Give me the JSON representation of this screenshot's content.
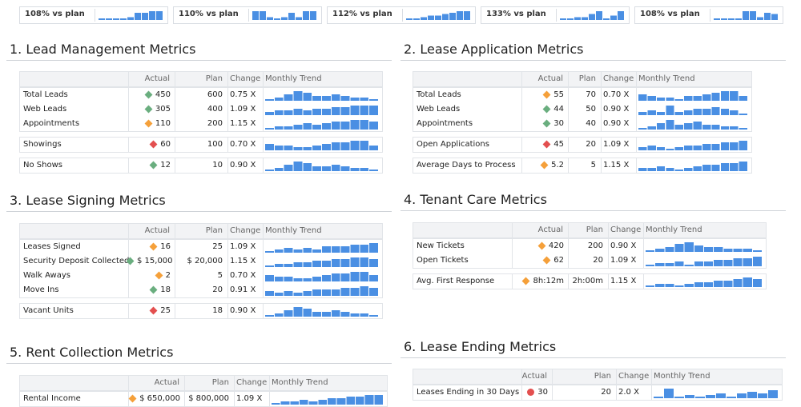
{
  "colors": {
    "green": "#6aae7f",
    "orange": "#f5a03a",
    "red": "#e34f4f",
    "bar": "#4a8fe3"
  },
  "kpis": [
    {
      "label": "108% vs plan",
      "trend": [
        1,
        1,
        1,
        1,
        2,
        5,
        5,
        6,
        6
      ]
    },
    {
      "label": "110% vs plan",
      "trend": [
        6,
        6,
        2,
        1,
        2,
        5,
        2,
        6,
        6
      ]
    },
    {
      "label": "112% vs plan",
      "trend": [
        1,
        1,
        2,
        3,
        3,
        4,
        5,
        6,
        6
      ]
    },
    {
      "label": "133% vs plan",
      "trend": [
        1,
        1,
        2,
        2,
        4,
        6,
        1,
        3,
        6
      ]
    },
    {
      "label": "108% vs plan",
      "trend": [
        1,
        1,
        1,
        1,
        6,
        6,
        2,
        5,
        4
      ]
    }
  ],
  "headers": {
    "actual": "Actual",
    "plan": "Plan",
    "change": "Change",
    "trend": "Monthly Trend"
  },
  "sections": [
    {
      "title": "1. Lead Management Metrics",
      "groups": [
        [
          {
            "name": "Total Leads",
            "status": "green",
            "actual": "450",
            "plan": "600",
            "change": "0.75 X",
            "trend": [
              1,
              2,
              4,
              6,
              5,
              3,
              3,
              4,
              3,
              2,
              2,
              1
            ]
          },
          {
            "name": "Web Leads",
            "status": "green",
            "actual": "305",
            "plan": "400",
            "change": "1.09 X",
            "trend": [
              2,
              3,
              3,
              4,
              3,
              4,
              4,
              5,
              5,
              6,
              6,
              6
            ]
          },
          {
            "name": "Appointments",
            "status": "orange",
            "actual": "110",
            "plan": "200",
            "change": "1.15 X",
            "trend": [
              1,
              2,
              2,
              3,
              4,
              3,
              4,
              5,
              5,
              6,
              6,
              5
            ]
          }
        ],
        [
          {
            "name": "Showings",
            "status": "red",
            "actual": "60",
            "plan": "100",
            "change": "0.70 X",
            "trend": [
              4,
              3,
              3,
              2,
              2,
              3,
              4,
              5,
              5,
              6,
              6,
              3
            ]
          }
        ],
        [
          {
            "name": "No Shows",
            "status": "green",
            "actual": "12",
            "plan": "10",
            "change": "0.90 X",
            "trend": [
              1,
              2,
              4,
              6,
              5,
              3,
              3,
              4,
              3,
              2,
              2,
              1
            ]
          }
        ]
      ]
    },
    {
      "title": "2. Lease Application Metrics",
      "groups": [
        [
          {
            "name": "Total Leads",
            "status": "orange",
            "actual": "55",
            "plan": "70",
            "change": "0.70 X",
            "trend": [
              4,
              3,
              2,
              2,
              1,
              3,
              3,
              4,
              5,
              6,
              6,
              3
            ]
          },
          {
            "name": "Web Leads",
            "status": "green",
            "actual": "44",
            "plan": "50",
            "change": "0.90 X",
            "trend": [
              2,
              3,
              2,
              6,
              2,
              3,
              4,
              4,
              5,
              4,
              3,
              1
            ]
          },
          {
            "name": "Appointments",
            "status": "green",
            "actual": "30",
            "plan": "40",
            "change": "0.90 X",
            "trend": [
              1,
              2,
              4,
              6,
              3,
              4,
              5,
              3,
              3,
              2,
              2,
              1
            ]
          }
        ],
        [
          {
            "name": "Open Applications",
            "status": "red",
            "actual": "45",
            "plan": "20",
            "change": "1.09 X",
            "trend": [
              2,
              3,
              2,
              1,
              2,
              3,
              3,
              4,
              4,
              5,
              5,
              6
            ]
          }
        ],
        [
          {
            "name": "Average Days to Process",
            "status": "orange",
            "actual": "5.2",
            "plan": "5",
            "change": "1.15 X",
            "trend": [
              2,
              2,
              3,
              2,
              1,
              2,
              3,
              4,
              4,
              5,
              5,
              6
            ]
          }
        ]
      ]
    },
    {
      "title": "3. Lease Signing Metrics",
      "groups": [
        [
          {
            "name": "Leases Signed",
            "status": "orange",
            "actual": "16",
            "plan": "25",
            "change": "1.09 X",
            "trend": [
              1,
              2,
              3,
              2,
              3,
              2,
              4,
              4,
              4,
              5,
              5,
              6
            ]
          },
          {
            "name": "Security Deposit Collected",
            "status": "green",
            "actual": "$ 15,000",
            "plan": "$ 20,000",
            "change": "1.15 X",
            "trend": [
              1,
              2,
              2,
              3,
              3,
              4,
              4,
              5,
              5,
              6,
              6,
              5
            ]
          },
          {
            "name": "Walk Aways",
            "status": "orange",
            "actual": "2",
            "plan": "5",
            "change": "0.70 X",
            "trend": [
              4,
              3,
              3,
              2,
              2,
              3,
              4,
              5,
              5,
              6,
              6,
              4
            ]
          },
          {
            "name": "Move Ins",
            "status": "green",
            "actual": "18",
            "plan": "20",
            "change": "0.91 X",
            "trend": [
              3,
              2,
              3,
              2,
              3,
              4,
              4,
              4,
              5,
              5,
              6,
              5
            ]
          }
        ],
        [
          {
            "name": "Vacant Units",
            "status": "red",
            "actual": "25",
            "plan": "18",
            "change": "0.90 X",
            "trend": [
              1,
              2,
              4,
              6,
              5,
              3,
              3,
              4,
              3,
              2,
              2,
              1
            ]
          }
        ]
      ]
    },
    {
      "title": "4. Tenant Care Metrics",
      "groups": [
        [
          {
            "name": "New Tickets",
            "status": "orange",
            "actual": "420",
            "plan": "200",
            "change": "0.90 X",
            "trend": [
              1,
              2,
              3,
              5,
              6,
              4,
              3,
              3,
              2,
              2,
              2,
              1
            ]
          },
          {
            "name": "Open Tickets",
            "status": "orange",
            "actual": "62",
            "plan": "20",
            "change": "1.09 X",
            "trend": [
              1,
              2,
              2,
              3,
              1,
              3,
              3,
              4,
              4,
              5,
              5,
              6
            ]
          }
        ],
        [
          {
            "name": "Avg. First Response",
            "status": "orange",
            "actual": "8h:12m",
            "plan": "2h:00m",
            "change": "1.15 X",
            "trend": [
              1,
              2,
              2,
              1,
              2,
              3,
              3,
              4,
              4,
              5,
              6,
              5
            ]
          }
        ]
      ]
    },
    {
      "title": "5. Rent Collection Metrics",
      "groups": [
        [
          {
            "name": "Rental Income",
            "status": "orange",
            "actual": "$ 650,000",
            "plan": "$ 800,000",
            "change": "1.09 X",
            "trend": [
              1,
              2,
              2,
              3,
              2,
              3,
              4,
              4,
              5,
              5,
              6,
              6
            ]
          }
        ]
      ]
    },
    {
      "title": "6. Lease Ending Metrics",
      "groups": [
        [
          {
            "name": "Leases Ending in 30 Days",
            "status": "red-dot",
            "actual": "30",
            "plan": "20",
            "change": "2.0 X",
            "trend": [
              1,
              6,
              1,
              2,
              1,
              2,
              3,
              1,
              3,
              4,
              3,
              5
            ]
          }
        ]
      ]
    }
  ]
}
